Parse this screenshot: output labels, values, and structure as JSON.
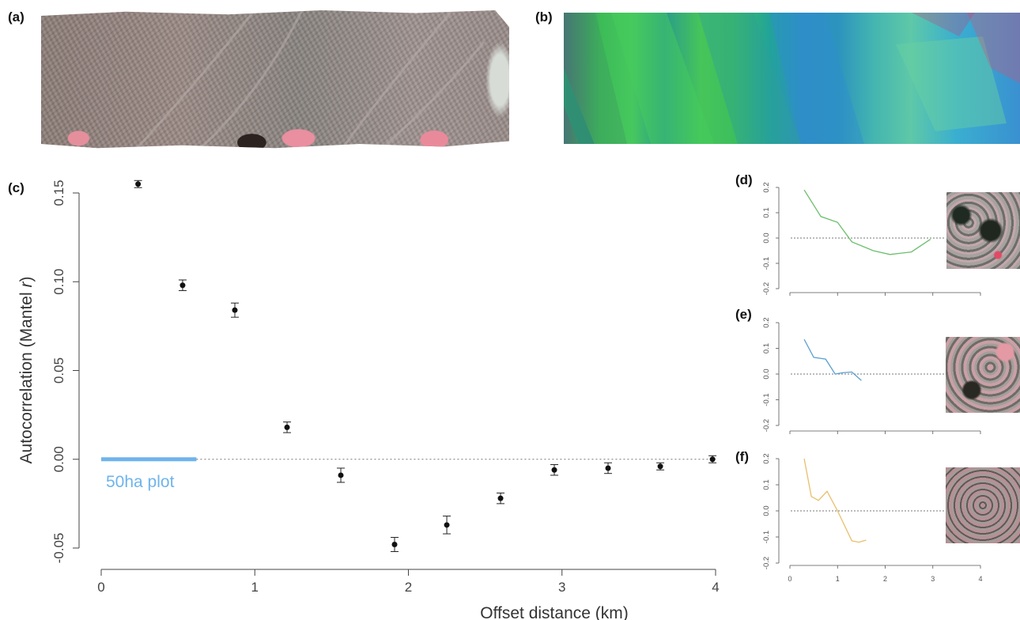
{
  "panel_labels": {
    "a": "(a)",
    "b": "(b)",
    "c": "(c)",
    "d": "(d)",
    "e": "(e)",
    "f": "(f)"
  },
  "colors": {
    "point": "#111111",
    "plot_bar": "#6fb4ec",
    "d_line": "#6bbf6b",
    "e_line": "#5a9fd0",
    "f_line": "#e9bf6a",
    "zero_line": "#777777"
  },
  "chart_data": [
    {
      "id": "c",
      "type": "scatter",
      "xlabel": "Offset distance (km)",
      "ylabel": "Autocorrelation (Mantel r)",
      "ylabel_main": "Autocorrelation (Mantel ",
      "ylabel_italic": "r",
      "ylabel_close": ")",
      "xlim": [
        0,
        4
      ],
      "ylim": [
        -0.05,
        0.15
      ],
      "xticks": [
        0,
        1,
        2,
        3,
        4
      ],
      "yticks": [
        -0.05,
        0.0,
        0.05,
        0.1,
        0.15
      ],
      "xtick_labels": [
        "0",
        "1",
        "2",
        "3",
        "4"
      ],
      "ytick_labels": [
        "-0.05",
        "0.00",
        "0.05",
        "0.10",
        "0.15"
      ],
      "series": [
        {
          "x": [
            0.24,
            0.53,
            0.87,
            1.21,
            1.56,
            1.91,
            2.25,
            2.6,
            2.95,
            3.3,
            3.64,
            3.98
          ],
          "y": [
            0.155,
            0.098,
            0.084,
            0.018,
            -0.009,
            -0.048,
            -0.037,
            -0.022,
            -0.006,
            -0.005,
            -0.004,
            0.0
          ],
          "err": [
            0.002,
            0.003,
            0.004,
            0.003,
            0.004,
            0.004,
            0.005,
            0.003,
            0.003,
            0.003,
            0.002,
            0.002
          ]
        }
      ],
      "zero_line": 0,
      "annotation": {
        "label": "50ha plot",
        "x_range": [
          0,
          0.62
        ],
        "y": 0
      }
    },
    {
      "id": "d",
      "type": "line",
      "xlim": [
        0,
        4
      ],
      "ylim": [
        -0.2,
        0.2
      ],
      "yticks": [
        -0.2,
        -0.1,
        0.0,
        0.1,
        0.2
      ],
      "ytick_labels": [
        "-0.2",
        "-0.1",
        "0.0",
        "0.1",
        "0.2"
      ],
      "series": [
        {
          "x": [
            0.3,
            0.65,
            1.0,
            1.3,
            1.75,
            2.1,
            2.55,
            2.95
          ],
          "y": [
            0.19,
            0.085,
            0.062,
            -0.015,
            -0.05,
            -0.065,
            -0.055,
            -0.005
          ],
          "color": "#6bbf6b"
        }
      ]
    },
    {
      "id": "e",
      "type": "line",
      "xlim": [
        0,
        4
      ],
      "ylim": [
        -0.2,
        0.2
      ],
      "yticks": [
        -0.2,
        -0.1,
        0.0,
        0.1,
        0.2
      ],
      "ytick_labels": [
        "-0.2",
        "-0.1",
        "0.0",
        "0.1",
        "0.2"
      ],
      "series": [
        {
          "x": [
            0.3,
            0.5,
            0.75,
            0.95,
            1.1,
            1.3,
            1.5
          ],
          "y": [
            0.135,
            0.065,
            0.058,
            0.0,
            0.005,
            0.008,
            -0.025
          ],
          "color": "#5a9fd0"
        }
      ]
    },
    {
      "id": "f",
      "type": "line",
      "xlim": [
        0,
        4
      ],
      "ylim": [
        -0.2,
        0.2
      ],
      "xticks": [
        0,
        1,
        2,
        3,
        4
      ],
      "xtick_labels": [
        "0",
        "1",
        "2",
        "3",
        "4"
      ],
      "yticks": [
        -0.2,
        -0.1,
        0.0,
        0.1,
        0.2
      ],
      "ytick_labels": [
        "-0.2",
        "-0.1",
        "0.0",
        "0.1",
        "0.2"
      ],
      "series": [
        {
          "x": [
            0.3,
            0.45,
            0.6,
            0.78,
            1.0,
            1.3,
            1.45,
            1.6
          ],
          "y": [
            0.2,
            0.055,
            0.04,
            0.075,
            0.0,
            -0.115,
            -0.12,
            -0.112
          ],
          "color": "#e9bf6a"
        }
      ]
    }
  ]
}
